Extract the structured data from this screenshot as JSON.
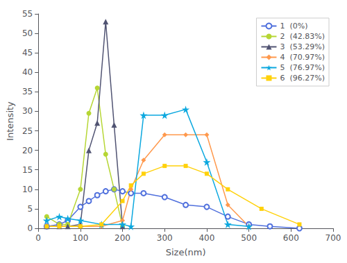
{
  "chart_data": {
    "type": "line",
    "xlabel": "Size(nm)",
    "ylabel": "Intensity",
    "xlim": [
      0,
      700
    ],
    "xticks": [
      0,
      100,
      200,
      300,
      400,
      500,
      600,
      700
    ],
    "ylim": [
      0,
      55
    ],
    "yticks": [
      0,
      5,
      10,
      15,
      20,
      25,
      30,
      35,
      40,
      45,
      50,
      55
    ],
    "grid": false,
    "legend": "upper right",
    "series": [
      {
        "name": "1  (0%)",
        "marker": "open-circle",
        "x": [
          20,
          50,
          70,
          100,
          120,
          140,
          160,
          180,
          200,
          220,
          250,
          300,
          350,
          400,
          450,
          500,
          550,
          620
        ],
        "values": [
          0.5,
          1.0,
          2.0,
          5.5,
          7.0,
          8.5,
          9.5,
          10.0,
          9.5,
          9.0,
          9.0,
          8.0,
          6.0,
          5.5,
          3.0,
          1.0,
          0.5,
          0.0
        ]
      },
      {
        "name": "2  (42.83%)",
        "marker": "circle",
        "x": [
          20,
          50,
          70,
          100,
          120,
          140,
          160,
          180,
          200
        ],
        "values": [
          3.0,
          1.0,
          1.0,
          10.0,
          29.5,
          36.0,
          19.0,
          10.0,
          0.5
        ]
      },
      {
        "name": "3  (53.29%)",
        "marker": "triangle",
        "x": [
          20,
          50,
          70,
          100,
          120,
          140,
          160,
          180,
          200
        ],
        "values": [
          0.5,
          0.5,
          0.5,
          1.0,
          20.0,
          27.0,
          53.0,
          26.5,
          0.5
        ]
      },
      {
        "name": "4  (70.97%)",
        "marker": "diamond",
        "x": [
          20,
          50,
          100,
          150,
          200,
          220,
          250,
          300,
          350,
          400,
          450,
          500
        ],
        "values": [
          0.5,
          0.5,
          0.5,
          0.5,
          2.0,
          10.0,
          17.5,
          24.0,
          24.0,
          24.0,
          6.0,
          0.5
        ]
      },
      {
        "name": "5  (76.97%)",
        "marker": "star",
        "x": [
          20,
          50,
          70,
          100,
          150,
          200,
          220,
          250,
          300,
          350,
          400,
          450,
          500
        ],
        "values": [
          2.0,
          3.0,
          2.5,
          2.0,
          1.0,
          1.0,
          0.5,
          29.0,
          29.0,
          30.5,
          17.0,
          1.0,
          0.5
        ]
      },
      {
        "name": "6  (96.27%)",
        "marker": "square",
        "x": [
          20,
          50,
          100,
          150,
          200,
          220,
          250,
          300,
          350,
          400,
          450,
          530,
          620
        ],
        "values": [
          0.5,
          0.5,
          0.5,
          1.0,
          7.0,
          11.0,
          14.0,
          16.0,
          16.0,
          14.0,
          10.0,
          5.0,
          1.0
        ]
      }
    ]
  }
}
